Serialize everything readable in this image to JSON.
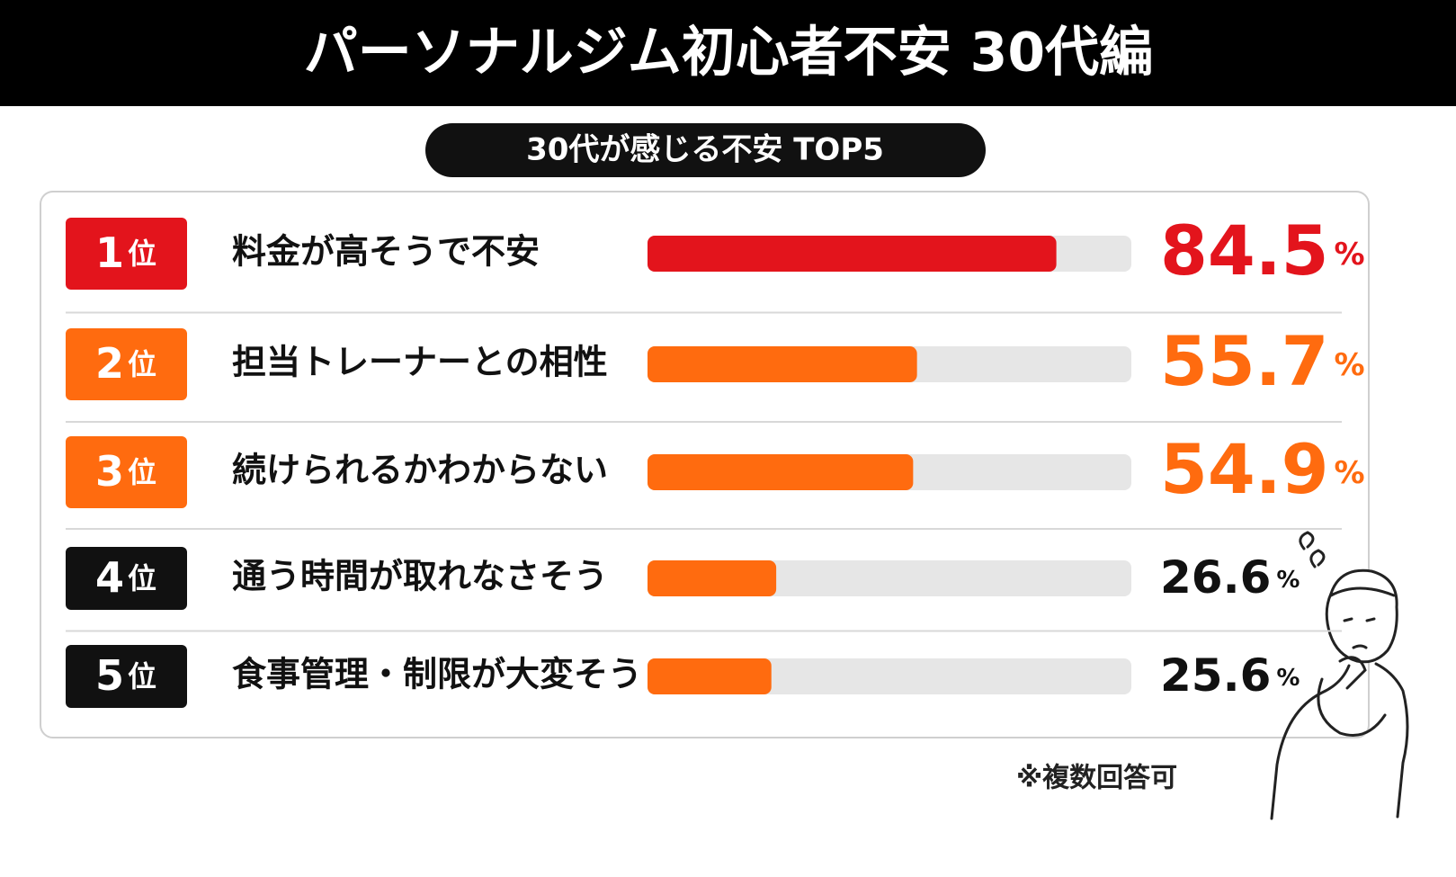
{
  "chart_data": {
    "type": "bar",
    "title": "パーソナルジム初心者不安 30代編",
    "subtitle": "30代が感じる不安 TOP5",
    "ranks": [
      "1",
      "2",
      "3",
      "4",
      "5"
    ],
    "rank_suffix": "位",
    "categories": [
      "料金が高そうで不安",
      "担当トレーナーとの相性",
      "続けられるかわからない",
      "通う時間が取れなさそう",
      "食事管理・制限が大変そう"
    ],
    "values": [
      84.5,
      55.7,
      54.9,
      26.6,
      25.6
    ],
    "unit": "%",
    "xlim": [
      0,
      100
    ],
    "colors": [
      "#e3141c",
      "#ff6b0f",
      "#ff6b0f",
      "#ff6b0f",
      "#ff6b0f"
    ],
    "rank_colors": [
      "#e3141c",
      "#ff6b0f",
      "#ff6b0f",
      "#111111",
      "#111111"
    ],
    "track_color": "#e6e6e6",
    "note": "※複数回答可"
  }
}
